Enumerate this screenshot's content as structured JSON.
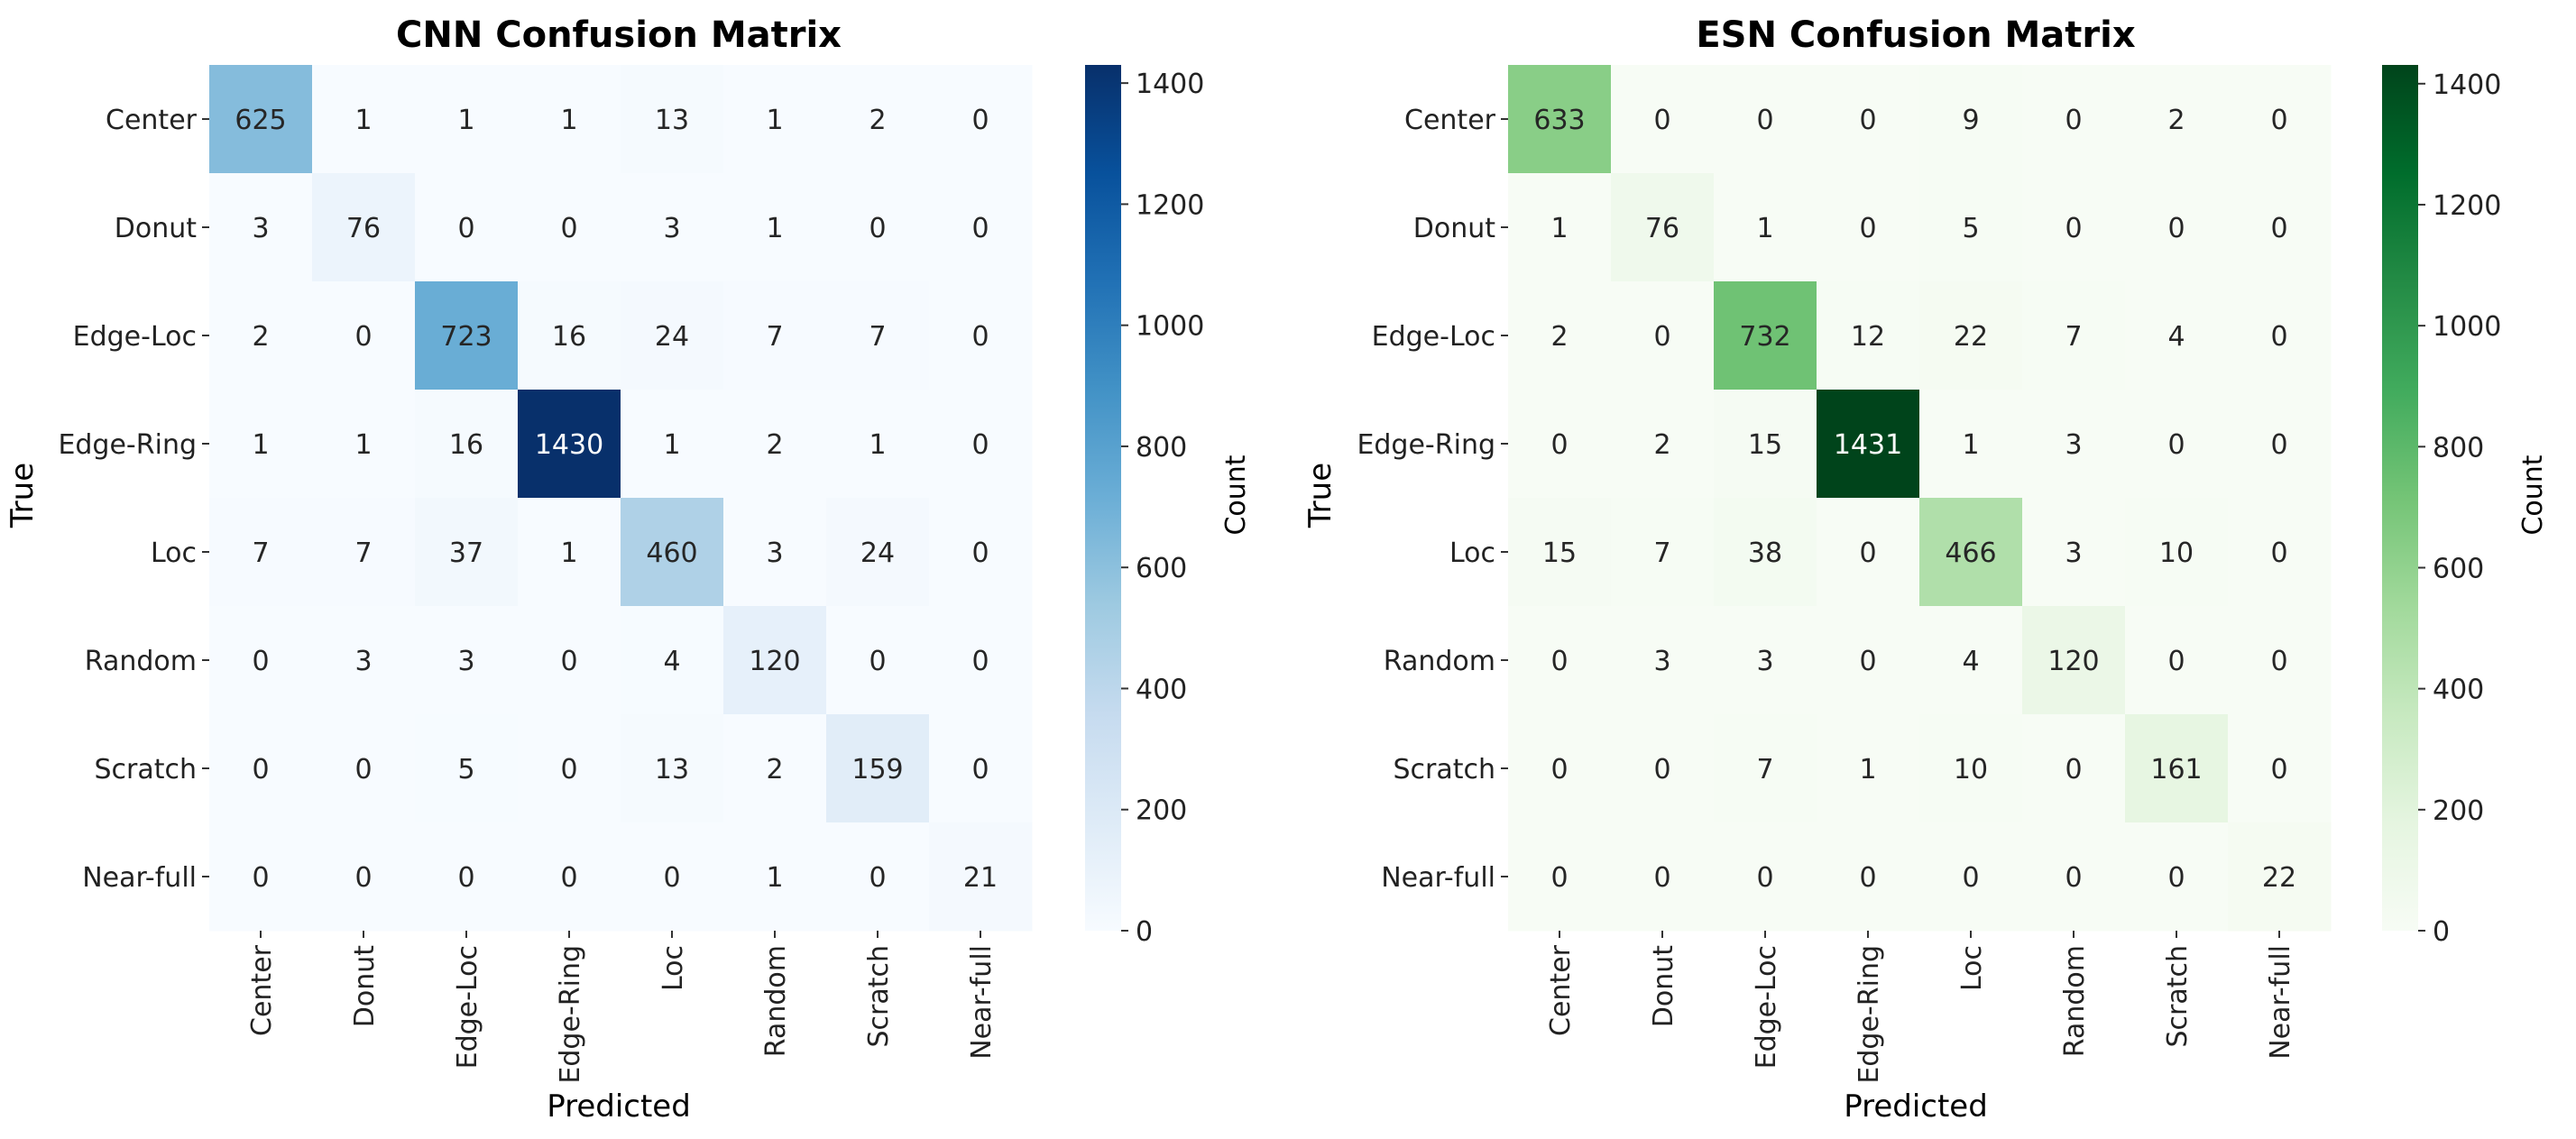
{
  "chart_data": [
    {
      "type": "heatmap",
      "title": "CNN Confusion Matrix",
      "xlabel": "Predicted",
      "ylabel": "True",
      "colorbar_label": "Count",
      "colormap": "Blues",
      "colors": [
        "#f7fbff",
        "#deebf7",
        "#c6dbef",
        "#9ecae1",
        "#6baed6",
        "#4292c6",
        "#2171b5",
        "#08519c",
        "#08306b"
      ],
      "vmin": 0,
      "vmax": 1430,
      "colorbar_ticks": [
        "0",
        "200",
        "400",
        "600",
        "800",
        "1000",
        "1200",
        "1400"
      ],
      "x_categories": [
        "Center",
        "Donut",
        "Edge-Loc",
        "Edge-Ring",
        "Loc",
        "Random",
        "Scratch",
        "Near-full"
      ],
      "y_categories": [
        "Center",
        "Donut",
        "Edge-Loc",
        "Edge-Ring",
        "Loc",
        "Random",
        "Scratch",
        "Near-full"
      ],
      "values": [
        [
          625,
          1,
          1,
          1,
          13,
          1,
          2,
          0
        ],
        [
          3,
          76,
          0,
          0,
          3,
          1,
          0,
          0
        ],
        [
          2,
          0,
          723,
          16,
          24,
          7,
          7,
          0
        ],
        [
          1,
          1,
          16,
          1430,
          1,
          2,
          1,
          0
        ],
        [
          7,
          7,
          37,
          1,
          460,
          3,
          24,
          0
        ],
        [
          0,
          3,
          3,
          0,
          4,
          120,
          0,
          0
        ],
        [
          0,
          0,
          5,
          0,
          13,
          2,
          159,
          0
        ],
        [
          0,
          0,
          0,
          0,
          0,
          1,
          0,
          21
        ]
      ]
    },
    {
      "type": "heatmap",
      "title": "ESN Confusion Matrix",
      "xlabel": "Predicted",
      "ylabel": "True",
      "colorbar_label": "Count",
      "colormap": "Greens",
      "colors": [
        "#f7fcf5",
        "#e5f5e0",
        "#c7e9c0",
        "#a1d99b",
        "#74c476",
        "#41ab5d",
        "#238b45",
        "#006d2c",
        "#00441b"
      ],
      "vmin": 0,
      "vmax": 1431,
      "colorbar_ticks": [
        "0",
        "200",
        "400",
        "600",
        "800",
        "1000",
        "1200",
        "1400"
      ],
      "x_categories": [
        "Center",
        "Donut",
        "Edge-Loc",
        "Edge-Ring",
        "Loc",
        "Random",
        "Scratch",
        "Near-full"
      ],
      "y_categories": [
        "Center",
        "Donut",
        "Edge-Loc",
        "Edge-Ring",
        "Loc",
        "Random",
        "Scratch",
        "Near-full"
      ],
      "values": [
        [
          633,
          0,
          0,
          0,
          9,
          0,
          2,
          0
        ],
        [
          1,
          76,
          1,
          0,
          5,
          0,
          0,
          0
        ],
        [
          2,
          0,
          732,
          12,
          22,
          7,
          4,
          0
        ],
        [
          0,
          2,
          15,
          1431,
          1,
          3,
          0,
          0
        ],
        [
          15,
          7,
          38,
          0,
          466,
          3,
          10,
          0
        ],
        [
          0,
          3,
          3,
          0,
          4,
          120,
          0,
          0
        ],
        [
          0,
          0,
          7,
          1,
          10,
          0,
          161,
          0
        ],
        [
          0,
          0,
          0,
          0,
          0,
          0,
          0,
          22
        ]
      ]
    }
  ]
}
